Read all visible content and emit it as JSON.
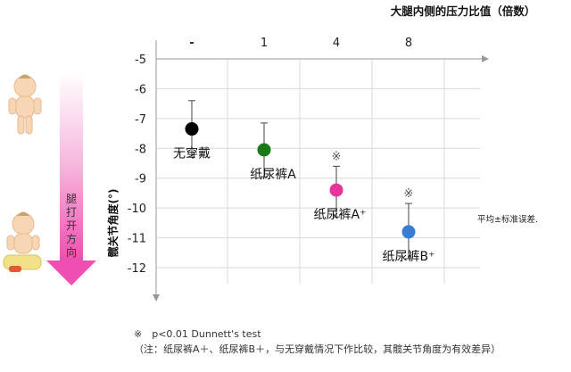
{
  "chart_data": {
    "type": "scatter",
    "title": "大腿内侧的压力比值（倍数）",
    "ylabel": "髋关节角度(°)",
    "ylim": [
      -12.5,
      -4.8
    ],
    "yticks": [
      -5,
      -6,
      -7,
      -8,
      -9,
      -10,
      -11,
      -12
    ],
    "grid": true,
    "categories": [
      "-",
      "1",
      "4",
      "8"
    ],
    "points": [
      {
        "x": "-",
        "y": -7.35,
        "err_low": -8.3,
        "err_high": -6.4,
        "label": "无穿戴",
        "sig": "",
        "color": "#000000"
      },
      {
        "x": "1",
        "y": -8.05,
        "err_low": -8.95,
        "err_high": -7.15,
        "label": "纸尿裤A",
        "sig": "",
        "color": "#1a7a1a"
      },
      {
        "x": "4",
        "y": -9.4,
        "err_low": -10.3,
        "err_high": -8.6,
        "label": "纸尿裤A⁺",
        "sig": "※",
        "color": "#e8339a"
      },
      {
        "x": "8",
        "y": -10.8,
        "err_low": -11.7,
        "err_high": -9.85,
        "label": "纸尿裤B⁺",
        "sig": "※",
        "color": "#3a7bd5"
      }
    ]
  },
  "legend_note": "平均±标准误差.",
  "arrow_label": "腿打开方向",
  "footnote": {
    "line1": "※　p<0.01 Dunnett's test",
    "line2": "（注：纸尿裤A＋、纸尿裤B＋，与无穿戴情况下作比较，其髋关节角度为有效差异）"
  }
}
